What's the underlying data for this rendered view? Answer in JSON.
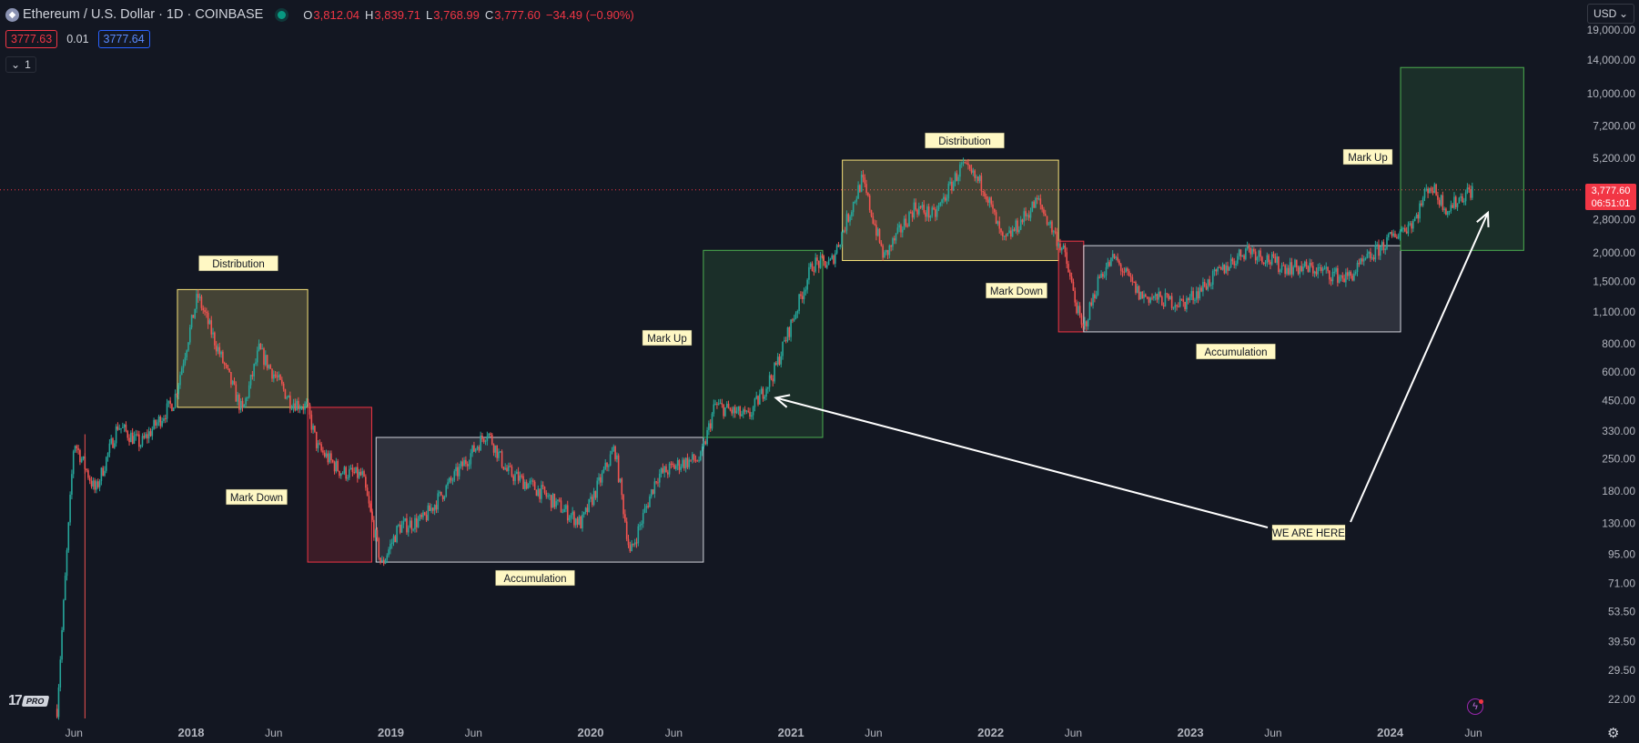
{
  "header": {
    "symbol_title": "Ethereum / U.S. Dollar · 1D · COINBASE",
    "ohlc": [
      {
        "k": "O",
        "v": "3,812.04"
      },
      {
        "k": "H",
        "v": "3,839.71"
      },
      {
        "k": "L",
        "v": "3,768.99"
      },
      {
        "k": "C",
        "v": "3,777.60"
      },
      {
        "k": "",
        "v": "−34.49 (−0.90%)"
      }
    ],
    "sell_price": "3777.63",
    "spread": "0.01",
    "buy_price": "3777.64",
    "collapse_label": "1",
    "currency": "USD"
  },
  "last_price": {
    "price": "3,777.60",
    "countdown": "06:51:01"
  },
  "colors": {
    "background": "#131722",
    "up": "#26a69a",
    "down": "#ef5350",
    "distribution": "#f7e27a",
    "markdown": "#f23645",
    "markup": "#4caf50",
    "accumulation": "#d1d4dc",
    "label_bg": "#fff8c4"
  },
  "chart_data": {
    "type": "candlestick",
    "title": "Ethereum / U.S. Dollar · 1D · COINBASE",
    "y_scale": "log",
    "y_ticks": [
      "22.00",
      "29.50",
      "39.50",
      "53.50",
      "71.00",
      "95.00",
      "130.00",
      "180.00",
      "250.00",
      "330.00",
      "450.00",
      "600.00",
      "800.00",
      "1,100.00",
      "1,500.00",
      "2,000.00",
      "2,800.00",
      "3,777.60",
      "5,200.00",
      "7,200.00",
      "10,000.00",
      "14,000.00",
      "19,000.00"
    ],
    "x_ticks": [
      "Jun",
      "2018",
      "Jun",
      "2019",
      "Jun",
      "2020",
      "Jun",
      "2021",
      "Jun",
      "2022",
      "Jun",
      "2023",
      "Jun",
      "2024",
      "Jun"
    ],
    "price_path": [
      {
        "t": "2017-05-01",
        "p": 20
      },
      {
        "t": "2017-06-01",
        "p": 300
      },
      {
        "t": "2017-07-10",
        "p": 180
      },
      {
        "t": "2017-08-20",
        "p": 350
      },
      {
        "t": "2017-10-01",
        "p": 290
      },
      {
        "t": "2017-12-01",
        "p": 450
      },
      {
        "t": "2018-01-13",
        "p": 1300
      },
      {
        "t": "2018-02-15",
        "p": 800
      },
      {
        "t": "2018-04-05",
        "p": 400
      },
      {
        "t": "2018-05-05",
        "p": 750
      },
      {
        "t": "2018-07-01",
        "p": 450
      },
      {
        "t": "2018-08-01",
        "p": 420
      },
      {
        "t": "2018-08-20",
        "p": 280
      },
      {
        "t": "2018-10-01",
        "p": 220
      },
      {
        "t": "2018-11-10",
        "p": 210
      },
      {
        "t": "2018-12-15",
        "p": 85
      },
      {
        "t": "2019-01-15",
        "p": 125
      },
      {
        "t": "2019-03-01",
        "p": 135
      },
      {
        "t": "2019-06-26",
        "p": 330
      },
      {
        "t": "2019-08-01",
        "p": 220
      },
      {
        "t": "2019-10-01",
        "p": 180
      },
      {
        "t": "2019-12-15",
        "p": 130
      },
      {
        "t": "2020-02-14",
        "p": 280
      },
      {
        "t": "2020-03-13",
        "p": 95
      },
      {
        "t": "2020-05-01",
        "p": 210
      },
      {
        "t": "2020-06-15",
        "p": 240
      },
      {
        "t": "2020-07-20",
        "p": 250
      },
      {
        "t": "2020-08-15",
        "p": 430
      },
      {
        "t": "2020-10-15",
        "p": 380
      },
      {
        "t": "2020-12-01",
        "p": 600
      },
      {
        "t": "2021-02-10",
        "p": 1800
      },
      {
        "t": "2021-03-15",
        "p": 1800
      },
      {
        "t": "2021-05-11",
        "p": 4200
      },
      {
        "t": "2021-06-20",
        "p": 1900
      },
      {
        "t": "2021-08-15",
        "p": 3200
      },
      {
        "t": "2021-09-20",
        "p": 2900
      },
      {
        "t": "2021-11-09",
        "p": 4800
      },
      {
        "t": "2021-12-20",
        "p": 3900
      },
      {
        "t": "2022-01-24",
        "p": 2200
      },
      {
        "t": "2022-03-28",
        "p": 3400
      },
      {
        "t": "2022-05-15",
        "p": 2000
      },
      {
        "t": "2022-06-18",
        "p": 900
      },
      {
        "t": "2022-07-20",
        "p": 1600
      },
      {
        "t": "2022-08-15",
        "p": 1900
      },
      {
        "t": "2022-10-01",
        "p": 1300
      },
      {
        "t": "2022-12-20",
        "p": 1200
      },
      {
        "t": "2023-04-15",
        "p": 2100
      },
      {
        "t": "2023-06-15",
        "p": 1750
      },
      {
        "t": "2023-08-15",
        "p": 1700
      },
      {
        "t": "2023-10-15",
        "p": 1550
      },
      {
        "t": "2023-12-31",
        "p": 2300
      },
      {
        "t": "2024-02-15",
        "p": 2800
      },
      {
        "t": "2024-03-12",
        "p": 4000
      },
      {
        "t": "2024-04-15",
        "p": 3100
      },
      {
        "t": "2024-05-20",
        "p": 3700
      },
      {
        "t": "2024-06-01",
        "p": 3777.6
      }
    ],
    "annotations": [
      {
        "label": "Distribution",
        "kind": "distribution",
        "start": "2017-12-07",
        "end": "2018-08-02",
        "top": 1380,
        "bottom": 420
      },
      {
        "label": "Mark Down",
        "kind": "markdown",
        "start": "2018-08-02",
        "end": "2018-11-27",
        "top": 420,
        "bottom": 88
      },
      {
        "label": "Accumulation",
        "kind": "accumulation",
        "start": "2018-12-05",
        "end": "2020-07-25",
        "top": 310,
        "bottom": 88
      },
      {
        "label": "Mark Up",
        "kind": "markup",
        "start": "2020-07-25",
        "end": "2021-02-28",
        "top": 2050,
        "bottom": 310
      },
      {
        "label": "Distribution",
        "kind": "distribution",
        "start": "2021-04-05",
        "end": "2022-05-05",
        "top": 5100,
        "bottom": 1850
      },
      {
        "label": "Mark Down",
        "kind": "markdown",
        "start": "2022-05-05",
        "end": "2022-06-20",
        "top": 2250,
        "bottom": 900
      },
      {
        "label": "Accumulation",
        "kind": "accumulation",
        "start": "2022-06-20",
        "end": "2024-01-20",
        "top": 2150,
        "bottom": 900
      },
      {
        "label": "Mark Up",
        "kind": "markup",
        "start": "2024-01-20",
        "end": "2024-09-01",
        "top": 13000,
        "bottom": 2050
      }
    ],
    "callout": {
      "label": "WE ARE HERE",
      "targets": [
        "2020-12-01",
        "2024-06-01"
      ]
    }
  }
}
